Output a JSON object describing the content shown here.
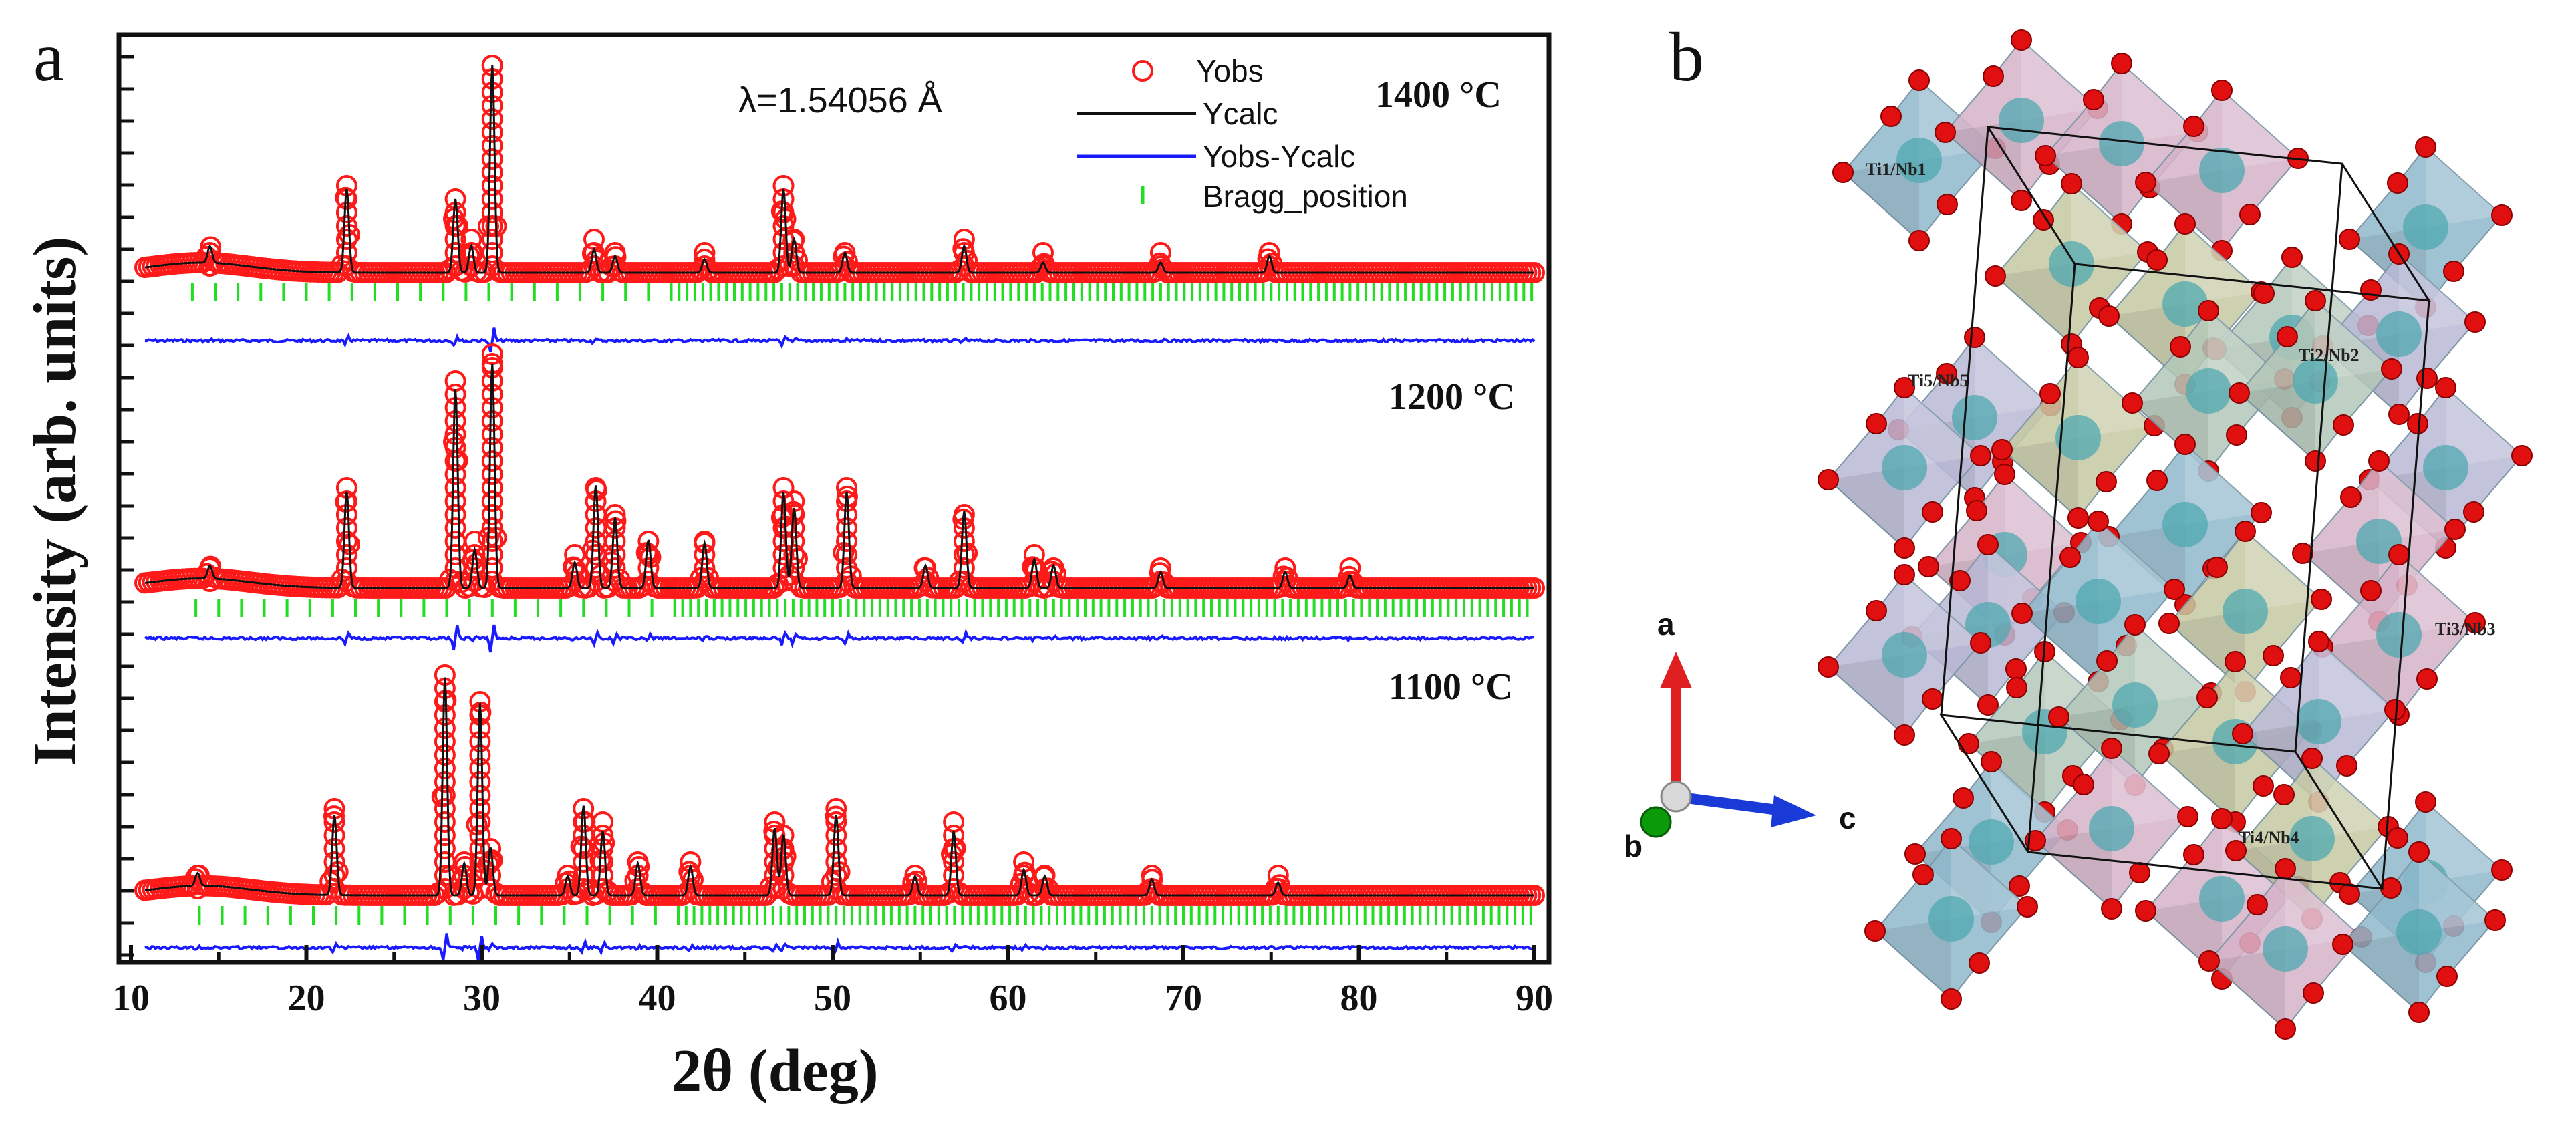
{
  "panels": {
    "a_label": "a",
    "b_label": "b"
  },
  "chart_data": {
    "type": "line",
    "title": "",
    "xlabel": "2θ (deg)",
    "ylabel": "Intensity (arb. units)",
    "xlim": [
      10,
      90
    ],
    "x_ticks": [
      10,
      20,
      30,
      40,
      50,
      60,
      70,
      80,
      90
    ],
    "wavelength_label": "λ=1.54056 Å",
    "legend": [
      "Yobs",
      "Ycalc",
      "Yobs-Ycalc",
      "Bragg_position"
    ],
    "legend_position": "top-right",
    "colors": {
      "yobs": "#ff1a1a",
      "ycalc": "#111111",
      "diff": "#1a1aff",
      "bragg": "#22dd22"
    },
    "datasets": [
      {
        "temperature": "1400 °C",
        "baseline": 0.05,
        "peaks": [
          {
            "x": 14.5,
            "h": 0.05
          },
          {
            "x": 22.3,
            "h": 0.25
          },
          {
            "x": 28.5,
            "h": 0.22
          },
          {
            "x": 29.4,
            "h": 0.08
          },
          {
            "x": 30.6,
            "h": 0.62
          },
          {
            "x": 36.4,
            "h": 0.07
          },
          {
            "x": 37.6,
            "h": 0.05
          },
          {
            "x": 42.7,
            "h": 0.04
          },
          {
            "x": 47.2,
            "h": 0.25
          },
          {
            "x": 47.8,
            "h": 0.1
          },
          {
            "x": 50.7,
            "h": 0.06
          },
          {
            "x": 57.5,
            "h": 0.08
          },
          {
            "x": 62.0,
            "h": 0.03
          },
          {
            "x": 68.7,
            "h": 0.03
          },
          {
            "x": 74.9,
            "h": 0.05
          }
        ]
      },
      {
        "temperature": "1200 °C",
        "baseline": 0.06,
        "peaks": [
          {
            "x": 14.5,
            "h": 0.04
          },
          {
            "x": 22.3,
            "h": 0.3
          },
          {
            "x": 28.5,
            "h": 0.62
          },
          {
            "x": 29.6,
            "h": 0.12
          },
          {
            "x": 30.6,
            "h": 0.7
          },
          {
            "x": 35.3,
            "h": 0.08
          },
          {
            "x": 36.5,
            "h": 0.32
          },
          {
            "x": 37.6,
            "h": 0.22
          },
          {
            "x": 39.5,
            "h": 0.15
          },
          {
            "x": 42.7,
            "h": 0.14
          },
          {
            "x": 47.2,
            "h": 0.3
          },
          {
            "x": 47.8,
            "h": 0.25
          },
          {
            "x": 50.8,
            "h": 0.3
          },
          {
            "x": 55.3,
            "h": 0.07
          },
          {
            "x": 57.5,
            "h": 0.24
          },
          {
            "x": 61.5,
            "h": 0.09
          },
          {
            "x": 62.6,
            "h": 0.07
          },
          {
            "x": 68.7,
            "h": 0.05
          },
          {
            "x": 75.8,
            "h": 0.05
          },
          {
            "x": 79.5,
            "h": 0.04
          }
        ]
      },
      {
        "temperature": "1100 °C",
        "baseline": 0.06,
        "peaks": [
          {
            "x": 13.8,
            "h": 0.04
          },
          {
            "x": 21.6,
            "h": 0.25
          },
          {
            "x": 27.9,
            "h": 0.68
          },
          {
            "x": 29.0,
            "h": 0.1
          },
          {
            "x": 29.9,
            "h": 0.6
          },
          {
            "x": 30.5,
            "h": 0.15
          },
          {
            "x": 34.9,
            "h": 0.06
          },
          {
            "x": 35.8,
            "h": 0.28
          },
          {
            "x": 36.9,
            "h": 0.2
          },
          {
            "x": 38.9,
            "h": 0.1
          },
          {
            "x": 41.9,
            "h": 0.09
          },
          {
            "x": 46.7,
            "h": 0.21
          },
          {
            "x": 47.2,
            "h": 0.19
          },
          {
            "x": 50.2,
            "h": 0.25
          },
          {
            "x": 54.7,
            "h": 0.06
          },
          {
            "x": 56.9,
            "h": 0.2
          },
          {
            "x": 60.9,
            "h": 0.08
          },
          {
            "x": 62.1,
            "h": 0.06
          },
          {
            "x": 68.2,
            "h": 0.05
          },
          {
            "x": 75.4,
            "h": 0.04
          }
        ]
      }
    ]
  },
  "structure": {
    "site_labels": [
      "Ti1/Nb1",
      "Ti2/Nb2",
      "Ti3/Nb3",
      "Ti4/Nb4",
      "Ti5/Nb5"
    ],
    "axes": [
      "a",
      "b",
      "c"
    ],
    "octahedra_colors": [
      "#8fb8cc",
      "#d6b3c9",
      "#c5c9a2",
      "#b3c7b8",
      "#b8b8d6"
    ],
    "oxygen_color": "#e01010",
    "metal_color": "#4fa8b0"
  }
}
